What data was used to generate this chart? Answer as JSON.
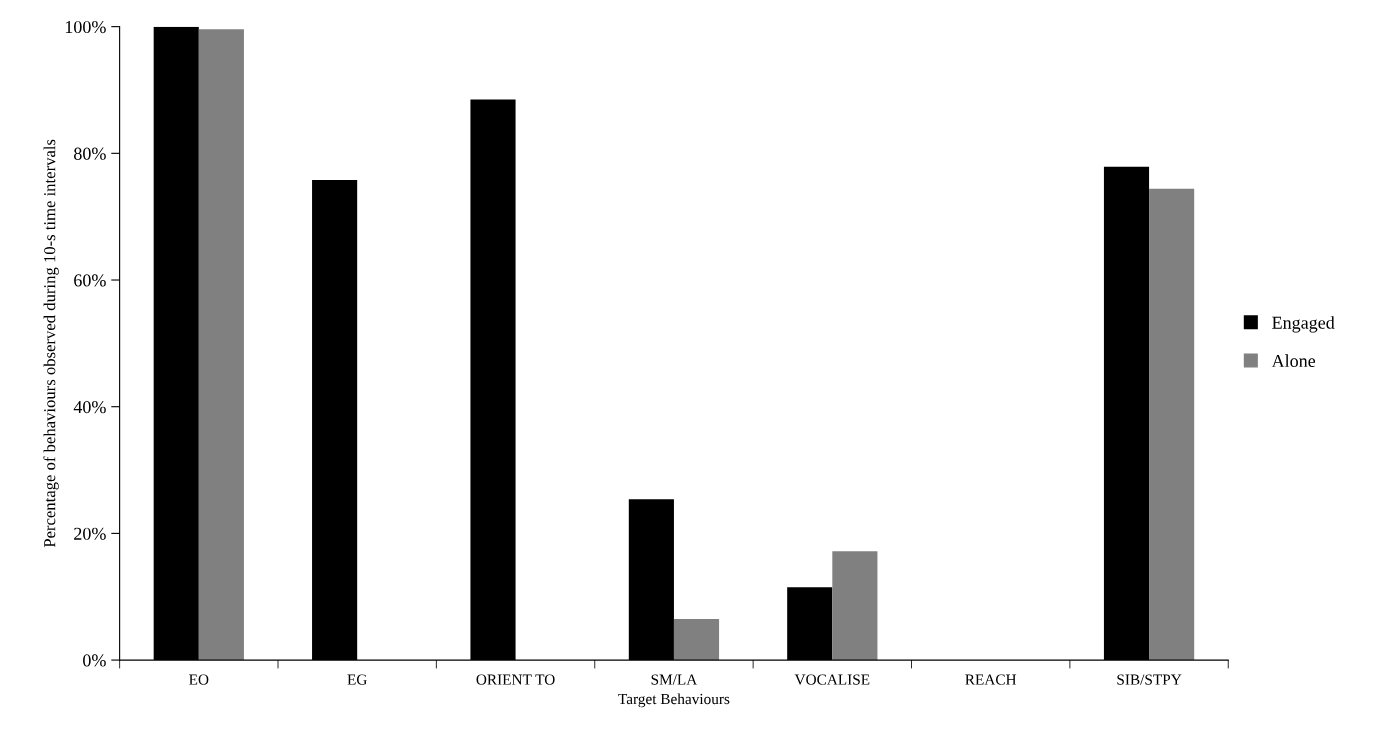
{
  "chart_data": {
    "type": "bar",
    "categories": [
      "EO",
      "EG",
      "ORIENT TO",
      "SM/LA",
      "VOCALISE",
      "REACH",
      "SIB/STPY"
    ],
    "series": [
      {
        "name": "Engaged",
        "color": "#000000",
        "values": [
          100,
          75.8,
          88.5,
          25.4,
          11.5,
          0,
          77.9
        ]
      },
      {
        "name": "Alone",
        "color": "#808080",
        "values": [
          99.6,
          0,
          0,
          6.5,
          17.2,
          0,
          74.4
        ]
      }
    ],
    "xlabel": "Target Behaviours",
    "ylabel": "Percentage of behaviours observed during 10-s time intervals",
    "ylim": [
      0,
      100
    ],
    "yticks": [
      {
        "value": 0,
        "label": "0%"
      },
      {
        "value": 20,
        "label": "20%"
      },
      {
        "value": 40,
        "label": "40%"
      },
      {
        "value": 60,
        "label": "60%"
      },
      {
        "value": 80,
        "label": "80%"
      },
      {
        "value": 100,
        "label": "100%"
      }
    ],
    "grid": false,
    "legend": "right"
  }
}
